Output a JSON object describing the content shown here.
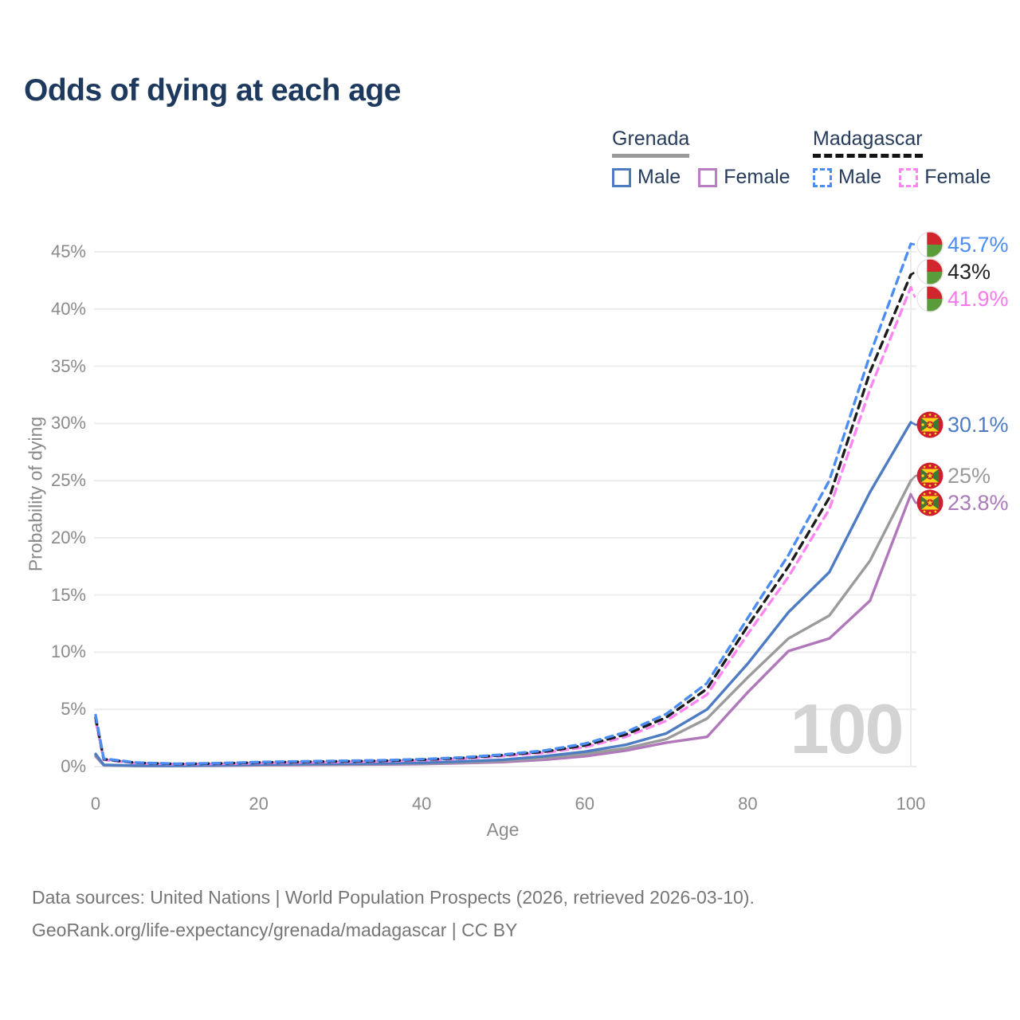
{
  "title": "Odds of dying at each age",
  "watermark": "100",
  "legend": {
    "groups": [
      {
        "country": "Grenada",
        "line_style": "solid",
        "underline_color": "#9a9a9a",
        "items": [
          {
            "label": "Male",
            "color": "#4d7cc3",
            "dashed": false
          },
          {
            "label": "Female",
            "color": "#b77fc0",
            "dashed": false
          }
        ]
      },
      {
        "country": "Madagascar",
        "line_style": "dashed",
        "underline_color": "#141414",
        "items": [
          {
            "label": "Male",
            "color": "#4b8df2",
            "dashed": true
          },
          {
            "label": "Female",
            "color": "#fb86f1",
            "dashed": true
          }
        ]
      }
    ]
  },
  "axes": {
    "y_label": "Probability of dying",
    "x_label": "Age",
    "y_ticks": [
      "0%",
      "5%",
      "10%",
      "15%",
      "20%",
      "25%",
      "30%",
      "35%",
      "40%",
      "45%"
    ],
    "x_ticks": [
      "0",
      "20",
      "40",
      "60",
      "80",
      "100"
    ],
    "y_range_pct": [
      0,
      45
    ],
    "x_range": [
      0,
      100
    ],
    "grid": "horizontal"
  },
  "chart_data": {
    "type": "line",
    "title": "Odds of dying at each age",
    "xlabel": "Age",
    "ylabel": "Probability of dying",
    "ylim_pct": [
      0,
      45
    ],
    "x": [
      0,
      1,
      5,
      10,
      15,
      20,
      25,
      30,
      35,
      40,
      45,
      50,
      55,
      60,
      65,
      70,
      75,
      80,
      85,
      90,
      95,
      100
    ],
    "series": [
      {
        "name": "Madagascar Male",
        "country": "Madagascar",
        "sex": "Male",
        "color": "#4b8df2",
        "dashed": true,
        "flag": "mg",
        "end_label": "45.7%",
        "label_color": "#4b8df2",
        "values": [
          4.5,
          0.7,
          0.35,
          0.25,
          0.3,
          0.4,
          0.45,
          0.5,
          0.55,
          0.65,
          0.8,
          1.05,
          1.4,
          2.0,
          3.0,
          4.6,
          7.3,
          13.0,
          18.5,
          25.0,
          36.0,
          45.7
        ]
      },
      {
        "name": "Madagascar",
        "country": "Madagascar",
        "sex": "Both",
        "color": "#1c1c1c",
        "dashed": true,
        "flag": "mg",
        "end_label": "43%",
        "label_color": "#222222",
        "values": [
          4.3,
          0.65,
          0.33,
          0.23,
          0.27,
          0.36,
          0.41,
          0.46,
          0.5,
          0.6,
          0.75,
          1.0,
          1.3,
          1.85,
          2.8,
          4.3,
          6.8,
          12.3,
          17.5,
          23.5,
          34.5,
          43.0
        ]
      },
      {
        "name": "Madagascar Female",
        "country": "Madagascar",
        "sex": "Female",
        "color": "#fb86f1",
        "dashed": true,
        "flag": "mg",
        "end_label": "41.9%",
        "label_color": "#f878ef",
        "values": [
          4.0,
          0.6,
          0.3,
          0.21,
          0.24,
          0.31,
          0.36,
          0.41,
          0.46,
          0.55,
          0.7,
          0.92,
          1.2,
          1.7,
          2.6,
          4.0,
          6.3,
          11.6,
          16.6,
          22.5,
          33.0,
          41.9
        ]
      },
      {
        "name": "Grenada Male",
        "country": "Grenada",
        "sex": "Male",
        "color": "#4d7cc3",
        "dashed": false,
        "flag": "gd",
        "end_label": "30.1%",
        "label_color": "#4d7cc3",
        "values": [
          1.1,
          0.15,
          0.08,
          0.08,
          0.12,
          0.18,
          0.22,
          0.25,
          0.28,
          0.33,
          0.45,
          0.6,
          0.9,
          1.3,
          1.9,
          2.9,
          5.0,
          9.0,
          13.5,
          17.0,
          24.0,
          30.1
        ]
      },
      {
        "name": "Grenada",
        "country": "Grenada",
        "sex": "Both",
        "color": "#9b9b9b",
        "dashed": false,
        "flag": "gd",
        "end_label": "25%",
        "label_color": "#9a9a9a",
        "values": [
          1.0,
          0.13,
          0.07,
          0.07,
          0.1,
          0.15,
          0.18,
          0.2,
          0.23,
          0.27,
          0.37,
          0.5,
          0.75,
          1.1,
          1.6,
          2.4,
          4.2,
          7.8,
          11.2,
          13.2,
          18.0,
          25.0
        ]
      },
      {
        "name": "Grenada Female",
        "country": "Grenada",
        "sex": "Female",
        "color": "#b078ba",
        "dashed": false,
        "flag": "gd",
        "end_label": "23.8%",
        "label_color": "#ab7ab8",
        "values": [
          0.9,
          0.11,
          0.06,
          0.06,
          0.08,
          0.12,
          0.14,
          0.16,
          0.19,
          0.22,
          0.3,
          0.4,
          0.6,
          0.9,
          1.4,
          2.1,
          2.6,
          6.5,
          10.1,
          11.2,
          14.5,
          23.8
        ]
      }
    ],
    "legend_position": "top-right"
  },
  "flag_colors": {
    "madagascar": {
      "white": "#ffffff",
      "red": "#d2262e",
      "green": "#5a9b3a"
    },
    "grenada": {
      "red": "#cf1f2f",
      "yellow": "#fcd116",
      "green": "#3d7a33"
    }
  },
  "footer": {
    "line1": "Data sources: United Nations | World Population Prospects (2026, retrieved 2026-03-10).",
    "line2": "GeoRank.org/life-expectancy/grenada/madagascar | CC BY"
  }
}
